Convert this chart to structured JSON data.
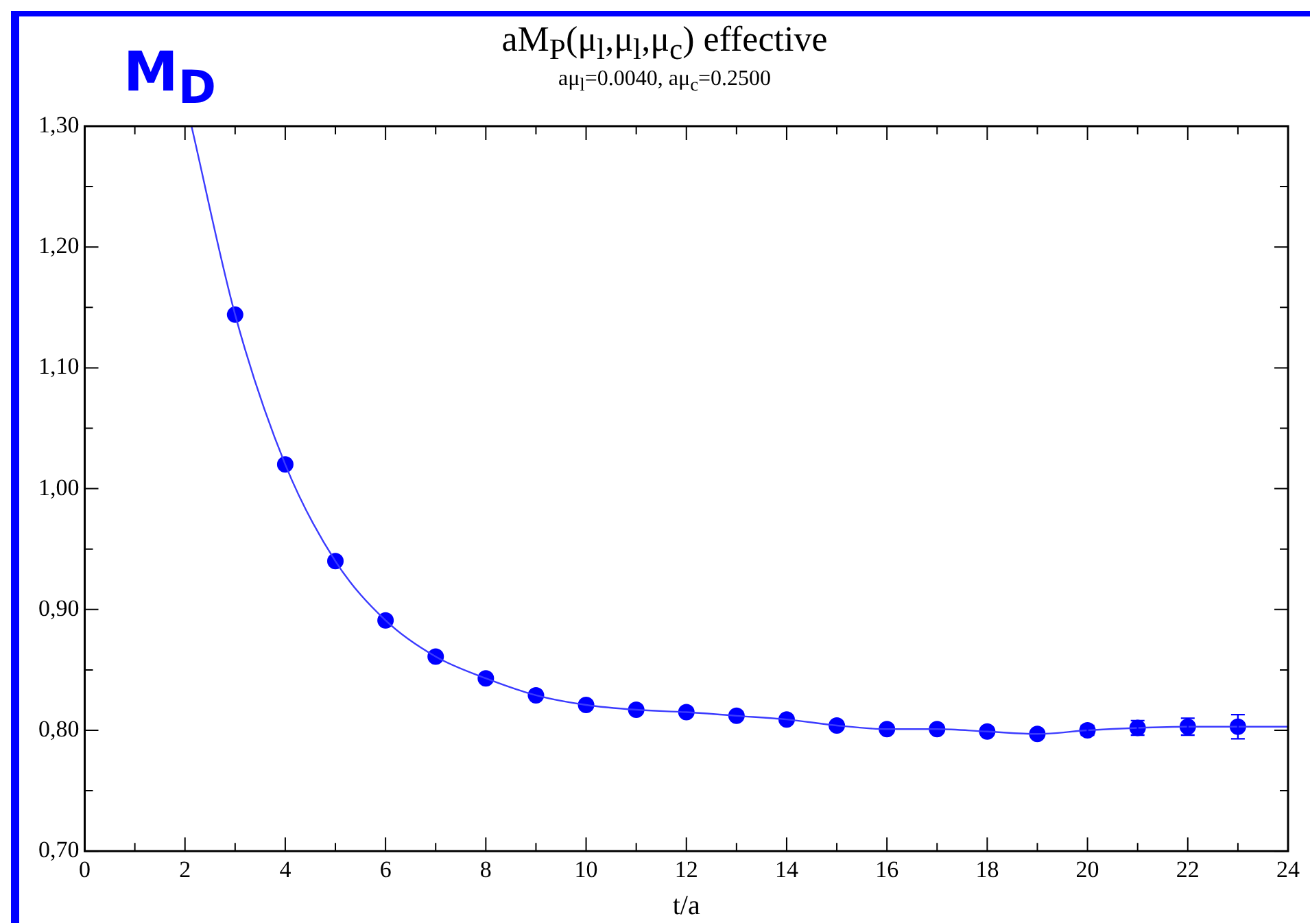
{
  "chart_data": {
    "type": "scatter",
    "title": "aM$_{P}$(μ$_{l}$,μ$_{l}$,μ$_{c}$)  effective",
    "subtitle": "aμ$_{l}$=0.0040, aμ$_{c}$=0.2500",
    "xlabel": "t/a",
    "annotations": [
      "M$_{D}$"
    ],
    "series": [
      {
        "type": "line",
        "color": "#3b3bff",
        "marker": "none",
        "x": [
          2.13,
          3,
          4,
          5,
          6,
          7,
          8,
          9,
          10,
          11,
          12,
          13,
          14,
          15,
          16,
          17,
          18,
          19,
          20,
          21,
          22,
          23,
          24
        ],
        "values": [
          1.3,
          1.144,
          1.02,
          0.94,
          0.891,
          0.861,
          0.843,
          0.829,
          0.821,
          0.817,
          0.815,
          0.812,
          0.809,
          0.804,
          0.801,
          0.801,
          0.799,
          0.797,
          0.8,
          0.802,
          0.803,
          0.803,
          0.803
        ]
      },
      {
        "type": "scatter",
        "color": "#0000ff",
        "marker": "circle",
        "x": [
          3,
          4,
          5,
          6,
          7,
          8,
          9,
          10,
          11,
          12,
          13,
          14,
          15,
          16,
          17,
          18,
          19,
          20,
          21,
          22,
          23
        ],
        "values": [
          1.144,
          1.02,
          0.94,
          0.891,
          0.861,
          0.843,
          0.829,
          0.821,
          0.817,
          0.815,
          0.812,
          0.809,
          0.804,
          0.801,
          0.801,
          0.799,
          0.797,
          0.8,
          0.802,
          0.803,
          0.803
        ],
        "errors": [
          null,
          null,
          null,
          null,
          null,
          null,
          null,
          null,
          null,
          null,
          null,
          null,
          null,
          null,
          null,
          null,
          null,
          0.004,
          0.006,
          0.007,
          0.01
        ]
      }
    ],
    "xlim": [
      0,
      24
    ],
    "xticks": [
      0,
      {
        "value": 1,
        "label": null
      },
      2,
      {
        "value": 3,
        "label": null
      },
      4,
      {
        "value": 5,
        "label": null
      },
      6,
      {
        "value": 7,
        "label": null
      },
      8,
      {
        "value": 9,
        "label": null
      },
      10,
      {
        "value": 11,
        "label": null
      },
      12,
      {
        "value": 13,
        "label": null
      },
      14,
      {
        "value": 15,
        "label": null
      },
      16,
      {
        "value": 17,
        "label": null
      },
      18,
      {
        "value": 19,
        "label": null
      },
      20,
      {
        "value": 21,
        "label": null
      },
      22,
      {
        "value": 23,
        "label": null
      },
      24
    ],
    "ylim": [
      0.7,
      1.3
    ],
    "yticks": [
      {
        "value": 0.7,
        "label": "0,70"
      },
      {
        "value": 0.75,
        "label": null
      },
      {
        "value": 0.8,
        "label": "0,80"
      },
      {
        "value": 0.85,
        "label": null
      },
      {
        "value": 0.9,
        "label": "0,90"
      },
      {
        "value": 0.95,
        "label": null
      },
      {
        "value": 1.0,
        "label": "1,00"
      },
      {
        "value": 1.05,
        "label": null
      },
      {
        "value": 1.1,
        "label": "1,10"
      },
      {
        "value": 1.15,
        "label": null
      },
      {
        "value": 1.2,
        "label": "1,20"
      },
      {
        "value": 1.25,
        "label": null
      },
      {
        "value": 1.3,
        "label": "1,30"
      }
    ],
    "grid": false,
    "legend": false
  }
}
